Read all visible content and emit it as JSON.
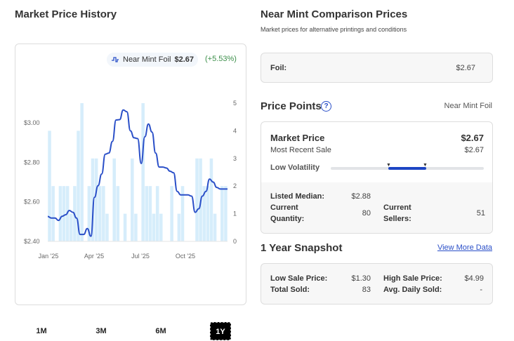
{
  "left": {
    "title": "Market Price History",
    "legend": {
      "icon": "line-chart-icon",
      "label": "Near Mint Foil",
      "price": "$2.67",
      "change": "(+5.53%)"
    },
    "ranges": [
      "1M",
      "3M",
      "6M",
      "1Y"
    ],
    "active_range": "1Y"
  },
  "comparison": {
    "title": "Near Mint Comparison Prices",
    "subtitle": "Market prices for alternative printings and conditions",
    "rows": [
      {
        "label": "Foil:",
        "value": "$2.67"
      }
    ]
  },
  "price_points": {
    "title": "Price Points",
    "help_icon": "question-circle-icon",
    "condition": "Near Mint Foil",
    "market_price_label": "Market Price",
    "market_price": "$2.67",
    "recent_sale_label": "Most Recent Sale",
    "recent_sale": "$2.67",
    "volatility_label": "Low Volatility",
    "listed_median_label": "Listed Median:",
    "listed_median": "$2.88",
    "quantity_label_1": "Current",
    "quantity_label_2": "Quantity:",
    "quantity": "80",
    "sellers_label_1": "Current",
    "sellers_label_2": "Sellers:",
    "sellers": "51"
  },
  "snapshot": {
    "title": "1 Year Snapshot",
    "link": "View More Data",
    "low_label": "Low Sale Price:",
    "low": "$1.30",
    "high_label": "High Sale Price:",
    "high": "$4.99",
    "total_label": "Total Sold:",
    "total": "83",
    "avg_label": "Avg. Daily Sold:",
    "avg": "-"
  },
  "chart_data": {
    "type": "line+bar",
    "x_ticks": [
      "Jan '25",
      "Apr '25",
      "Jul '25",
      "Oct '25"
    ],
    "y_left_ticks": [
      "$2.40",
      "$2.60",
      "$2.80",
      "$3.00"
    ],
    "y_left_range": [
      2.4,
      3.1
    ],
    "y_right_ticks": [
      "0",
      "1",
      "2",
      "3",
      "4",
      "5"
    ],
    "y_right_range": [
      0,
      5
    ],
    "colors": {
      "line": "#2a4fc8",
      "bars": "#d6edfb"
    },
    "series": [
      {
        "name": "Near Mint Foil",
        "type": "line",
        "values": [
          2.526,
          2.518,
          2.518,
          2.506,
          2.527,
          2.535,
          2.556,
          2.547,
          2.518,
          2.435,
          2.435,
          2.465,
          2.426,
          2.623,
          2.682,
          2.741,
          2.841,
          2.847,
          2.906,
          3.014,
          3.016,
          3.065,
          3.056,
          2.959,
          2.924,
          2.92,
          2.794,
          2.929,
          2.994,
          2.953,
          2.847,
          2.776,
          2.776,
          2.771,
          2.755,
          2.747,
          2.653,
          2.635,
          2.635,
          2.635,
          2.629,
          2.547,
          2.565,
          2.629,
          2.653,
          2.715,
          2.7,
          2.673,
          2.665,
          2.665,
          2.665
        ]
      },
      {
        "type": "bar",
        "values": [
          4,
          2,
          0,
          2,
          2,
          2,
          1,
          2,
          4,
          5,
          0,
          2,
          3,
          3,
          2,
          2,
          1,
          0,
          3,
          2,
          0,
          1,
          0,
          3,
          1,
          0,
          5,
          2,
          2,
          1,
          2,
          1,
          0,
          0,
          2,
          0,
          1,
          2,
          0,
          0,
          0,
          3,
          3,
          2,
          2,
          3,
          1,
          0,
          2,
          2
        ]
      }
    ]
  }
}
